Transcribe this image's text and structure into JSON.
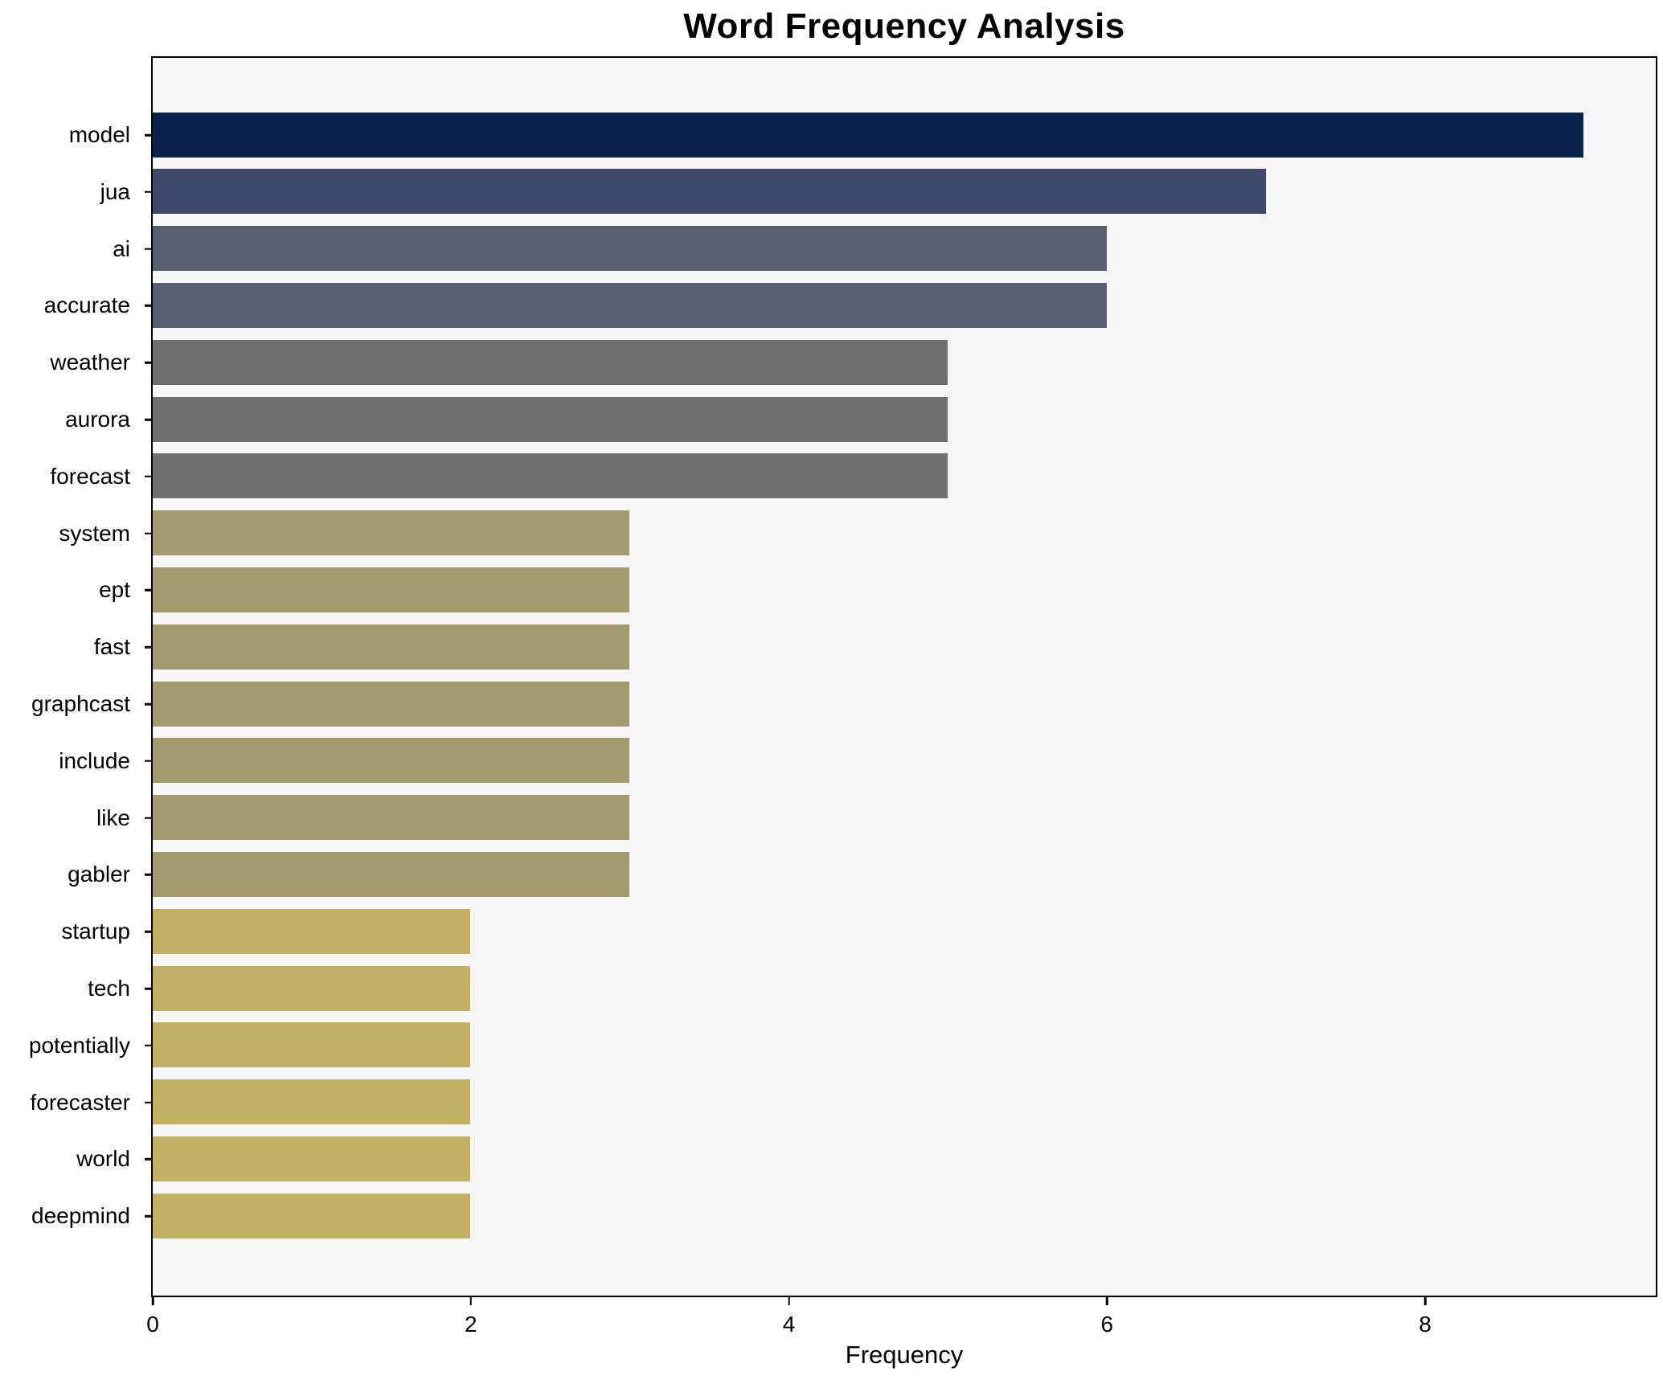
{
  "title": "Word Frequency Analysis",
  "chart_data": {
    "type": "bar",
    "orientation": "horizontal",
    "title": "Word Frequency Analysis",
    "xlabel": "Frequency",
    "ylabel": "",
    "categories": [
      "model",
      "jua",
      "ai",
      "accurate",
      "weather",
      "aurora",
      "forecast",
      "system",
      "ept",
      "fast",
      "graphcast",
      "include",
      "like",
      "gabler",
      "startup",
      "tech",
      "potentially",
      "forecaster",
      "world",
      "deepmind"
    ],
    "values": [
      9,
      7,
      6,
      6,
      5,
      5,
      5,
      3,
      3,
      3,
      3,
      3,
      3,
      3,
      2,
      2,
      2,
      2,
      2,
      2
    ],
    "bar_colors": [
      "#07234e",
      "#3e4a6c",
      "#565e71",
      "#565e71",
      "#6f6f70",
      "#6f6f70",
      "#6f6f70",
      "#a39a6d",
      "#a39a6d",
      "#a39a6d",
      "#a39a6d",
      "#a39a6d",
      "#a39a6d",
      "#a39a6d",
      "#c2b165",
      "#c2b165",
      "#c2b165",
      "#c2b165",
      "#c2b165",
      "#c2b165"
    ],
    "xlim": [
      0,
      9.45
    ],
    "xticks": [
      0,
      2,
      4,
      6,
      8
    ],
    "grid": false,
    "legend": null,
    "plot_bg": "#f6f6f7",
    "fig_bg": "#ffffff",
    "spine_color": "#000000"
  }
}
